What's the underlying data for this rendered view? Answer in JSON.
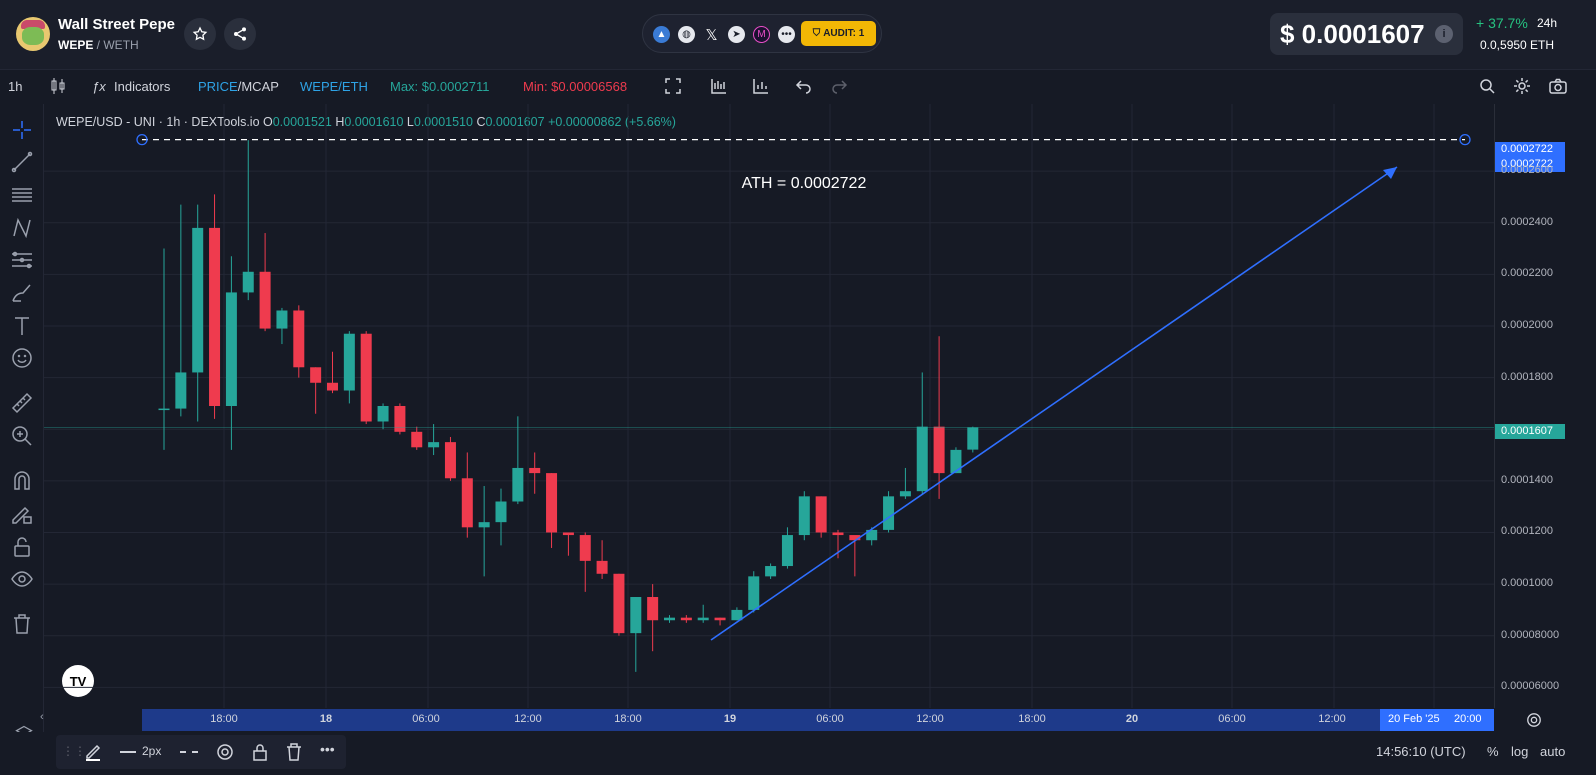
{
  "header": {
    "token_name": "Wall Street Pepe",
    "pair_base": "WEPE",
    "pair_sep": " / ",
    "pair_quote": "WETH",
    "audit_label": "AUDIT: 1",
    "price": "$ 0.0001607",
    "change_pct": "+ 37.7%",
    "change_period": "24h",
    "eth_price": "0.0,5950  ETH"
  },
  "toolbar": {
    "interval": "1h",
    "indicators": "Indicators",
    "price_label": "PRICE",
    "mcap_label": "/MCAP",
    "pair_label": "WEPE/ETH",
    "max": "Max: $0.0002711",
    "min": "Min: $0.00006568"
  },
  "legend": {
    "symbol": "WEPE/USD - UNI · 1h · DEXTools.io",
    "o_label": "O",
    "o": "0.0001521",
    "h_label": "H",
    "h": "0.0001610",
    "l_label": "L",
    "l": "0.0001510",
    "c_label": "C",
    "c": "0.0001607",
    "change": "+0.00000862 (+5.66%)"
  },
  "annotation": {
    "ath": "ATH = 0.0002722"
  },
  "yaxis": {
    "ticks": [
      "0.0002600",
      "0.0002400",
      "0.0002200",
      "0.0002000",
      "0.0001800",
      "0.0001400",
      "0.0001200",
      "0.0001000",
      "0.00008000",
      "0.00006000"
    ],
    "ath_tag": "0.0002722",
    "ath_tag2": "0.0002722",
    "current_tag": "0.0001607"
  },
  "xaxis": {
    "ticks": [
      "18:00",
      "18",
      "06:00",
      "12:00",
      "18:00",
      "19",
      "06:00",
      "12:00",
      "18:00",
      "20",
      "06:00",
      "12:00"
    ],
    "highlight_date": "20 Feb '25",
    "highlight_time": "20:00"
  },
  "bottom": {
    "stroke_width": "2px",
    "time": "14:56:10 (UTC)",
    "pct": "%",
    "log": "log",
    "auto": "auto"
  },
  "colors": {
    "up": "#26a69a",
    "down": "#ef3b4e",
    "trend": "#2f6fff",
    "bg": "#161a25"
  },
  "chart_data": {
    "type": "candlestick",
    "candles": [
      [
        0.000168,
        0.000168,
        0.00023,
        0.000152
      ],
      [
        0.000168,
        0.000182,
        0.000247,
        0.000165
      ],
      [
        0.000182,
        0.000238,
        0.000247,
        0.000163
      ],
      [
        0.000238,
        0.000169,
        0.000251,
        0.000164
      ],
      [
        0.000169,
        0.000213,
        0.000227,
        0.000152
      ],
      [
        0.000213,
        0.000221,
        0.000272,
        0.00021
      ],
      [
        0.000221,
        0.000199,
        0.000236,
        0.000198
      ],
      [
        0.000199,
        0.000206,
        0.000207,
        0.000193
      ],
      [
        0.000206,
        0.000184,
        0.000208,
        0.00018
      ],
      [
        0.000184,
        0.000178,
        0.000184,
        0.000166
      ],
      [
        0.000178,
        0.000175,
        0.00019,
        0.000174
      ],
      [
        0.000175,
        0.000197,
        0.000198,
        0.00017
      ],
      [
        0.000197,
        0.000163,
        0.000198,
        0.000162
      ],
      [
        0.000163,
        0.000169,
        0.00017,
        0.00016
      ],
      [
        0.000169,
        0.000159,
        0.00017,
        0.000158
      ],
      [
        0.000159,
        0.000153,
        0.000161,
        0.000152
      ],
      [
        0.000153,
        0.000155,
        0.000162,
        0.00015
      ],
      [
        0.000155,
        0.000141,
        0.000157,
        0.00014
      ],
      [
        0.000141,
        0.000122,
        0.000151,
        0.000118
      ],
      [
        0.000122,
        0.000124,
        0.000138,
        0.000103
      ],
      [
        0.000124,
        0.000132,
        0.000137,
        0.000115
      ],
      [
        0.000132,
        0.000145,
        0.000165,
        0.000131
      ],
      [
        0.000145,
        0.000143,
        0.000151,
        0.000135
      ],
      [
        0.000143,
        0.00012,
        0.000143,
        0.000114
      ],
      [
        0.00012,
        0.000119,
        0.00012,
        0.000111
      ],
      [
        0.000119,
        0.000109,
        0.00012,
        9.7e-05
      ],
      [
        0.000109,
        0.000104,
        0.000117,
        0.000102
      ],
      [
        0.000104,
        8.1e-05,
        0.000104,
        8e-05
      ],
      [
        8.1e-05,
        9.5e-05,
        9.5e-05,
        6.6e-05
      ],
      [
        9.5e-05,
        8.6e-05,
        0.0001,
        7.4e-05
      ],
      [
        8.6e-05,
        8.7e-05,
        8.8e-05,
        8.5e-05
      ],
      [
        8.7e-05,
        8.6e-05,
        8.8e-05,
        8.5e-05
      ],
      [
        8.6e-05,
        8.7e-05,
        9.2e-05,
        8.5e-05
      ],
      [
        8.7e-05,
        8.6e-05,
        8.7e-05,
        8.4e-05
      ],
      [
        8.6e-05,
        9e-05,
        9.1e-05,
        8.6e-05
      ],
      [
        9e-05,
        0.000103,
        0.000105,
        8.9e-05
      ],
      [
        0.000103,
        0.000107,
        0.000108,
        0.000102
      ],
      [
        0.000107,
        0.000119,
        0.000122,
        0.000106
      ],
      [
        0.000119,
        0.000134,
        0.000136,
        0.000117
      ],
      [
        0.000134,
        0.00012,
        0.000134,
        0.000118
      ],
      [
        0.00012,
        0.000119,
        0.000121,
        0.00011
      ],
      [
        0.000119,
        0.000117,
        0.000118,
        0.000103
      ],
      [
        0.000117,
        0.000121,
        0.000122,
        0.000115
      ],
      [
        0.000121,
        0.000134,
        0.000136,
        0.00012
      ],
      [
        0.000134,
        0.000136,
        0.000145,
        0.000133
      ],
      [
        0.000136,
        0.000161,
        0.000182,
        0.000135
      ],
      [
        0.000161,
        0.000143,
        0.000196,
        0.000133
      ],
      [
        0.000143,
        0.000152,
        0.000153,
        0.000143
      ],
      [
        0.0001521,
        0.0001607,
        0.000161,
        0.000151
      ]
    ],
    "ylim": [
      5.2e-05,
      0.000286
    ],
    "ath": 0.0002722,
    "current": 0.0001607
  }
}
